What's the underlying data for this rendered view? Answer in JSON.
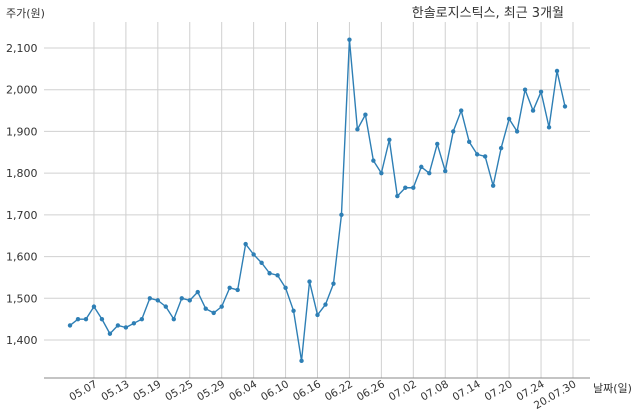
{
  "chart_data": {
    "type": "line",
    "title": "한솔로지스틱스, 최근 3개월",
    "ylabel": "주가(원)",
    "xlabel": "날짜(일)",
    "ylim": [
      1315,
      2150
    ],
    "yticks": [
      1400,
      1500,
      1600,
      1700,
      1800,
      1900,
      2000,
      2100
    ],
    "ytick_labels": [
      "1,400",
      "1,500",
      "1,600",
      "1,700",
      "1,800",
      "1,900",
      "2,000",
      "2,100"
    ],
    "xtick_labels": [
      "05.07",
      "05.13",
      "05.19",
      "05.25",
      "05.29",
      "06.04",
      "06.10",
      "06.16",
      "06.22",
      "06.26",
      "07.02",
      "07.08",
      "07.14",
      "07.20",
      "07.24",
      "20.07.30"
    ],
    "xtick_positions": [
      3,
      7,
      11,
      15,
      19,
      23,
      27,
      31,
      35,
      39,
      43,
      47,
      51,
      55,
      59,
      63
    ],
    "grid": true,
    "line_color": "#2e7fb5",
    "series": [
      {
        "values": [
          1435,
          1450,
          1450,
          1480,
          1450,
          1415,
          1435,
          1430,
          1440,
          1450,
          1500,
          1495,
          1480,
          1450,
          1500,
          1495,
          1515,
          1475,
          1465,
          1480,
          1525,
          1520,
          1630,
          1605,
          1585,
          1560,
          1555,
          1525,
          1470,
          1350,
          1540,
          1460,
          1485,
          1535,
          1700,
          2120,
          1905,
          1940,
          1830,
          1800,
          1880,
          1745,
          1765,
          1765,
          1815,
          1800,
          1870,
          1805,
          1900,
          1950,
          1875,
          1845,
          1840,
          1770,
          1860,
          1930,
          1900,
          2000,
          1950,
          1995,
          1910,
          2045,
          1960
        ]
      }
    ]
  }
}
